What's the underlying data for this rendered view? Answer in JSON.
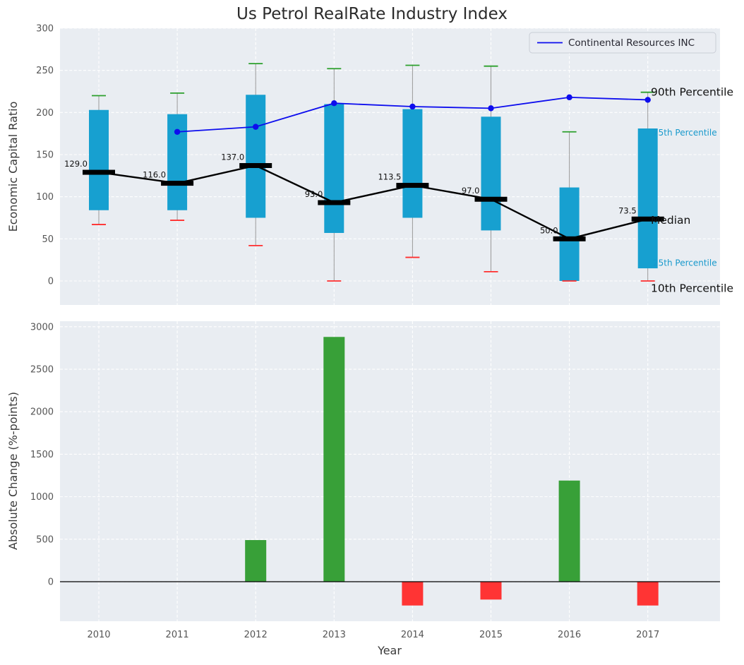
{
  "title": "Us Petrol RealRate Industry Index",
  "legend": {
    "series_label": "Continental Resources INC"
  },
  "colors": {
    "axes_bg": "#e9edf2",
    "grid": "#ffffff",
    "box_fill": "#17a0d0",
    "median": "#000000",
    "upper_cap": "#2ca02c",
    "lower_cap": "#ff2e2e",
    "company_line": "#0d0dee",
    "bar_positive": "#38a038",
    "bar_negative": "#ff3434",
    "tick": "#555555",
    "annotation_minor": "#1899cc",
    "whisker": "#999999"
  },
  "chart_data": [
    {
      "type": "boxplot",
      "title": "Us Petrol RealRate Industry Index",
      "ylabel": "Economic Capital Ratio",
      "ylim": [
        -28.5,
        300
      ],
      "yticks": [
        0,
        50,
        100,
        150,
        200,
        250,
        300
      ],
      "grid": true,
      "legend_position": "upper right",
      "categories": [
        "2010",
        "2011",
        "2012",
        "2013",
        "2014",
        "2015",
        "2016",
        "2017"
      ],
      "boxes": [
        {
          "year": "2010",
          "p10": 67,
          "p25": 84,
          "median": 129.0,
          "p75": 203,
          "p90": 220
        },
        {
          "year": "2011",
          "p10": 72,
          "p25": 84,
          "median": 116.0,
          "p75": 198,
          "p90": 223
        },
        {
          "year": "2012",
          "p10": 42,
          "p25": 75,
          "median": 137.0,
          "p75": 221,
          "p90": 258
        },
        {
          "year": "2013",
          "p10": 0,
          "p25": 57,
          "median": 93.0,
          "p75": 210,
          "p90": 252
        },
        {
          "year": "2014",
          "p10": 28,
          "p25": 75,
          "median": 113.5,
          "p75": 204,
          "p90": 256
        },
        {
          "year": "2015",
          "p10": 11,
          "p25": 60,
          "median": 97.0,
          "p75": 195,
          "p90": 255
        },
        {
          "year": "2016",
          "p10": 0,
          "p25": 0,
          "median": 50.0,
          "p75": 111,
          "p90": 177
        },
        {
          "year": "2017",
          "p10": 0,
          "p25": 15,
          "median": 73.5,
          "p75": 181,
          "p90": 224
        }
      ],
      "median_labels": [
        "129.0",
        "116.0",
        "137.0",
        "93.0",
        "113.5",
        "97.0",
        "50.0",
        "73.5"
      ],
      "series": [
        {
          "name": "Continental Resources INC",
          "values": [
            null,
            177,
            183,
            211,
            207,
            205,
            218,
            215
          ]
        }
      ],
      "annotations": [
        {
          "label": "90th Percentile",
          "value": 224,
          "kind": "major"
        },
        {
          "label": "75th Percentile",
          "value": 177,
          "kind": "minor"
        },
        {
          "label": "Median",
          "value": 72,
          "kind": "major"
        },
        {
          "label": "25th Percentile",
          "value": 22,
          "kind": "minor"
        },
        {
          "label": "10th Percentile",
          "value": -9,
          "kind": "major"
        }
      ]
    },
    {
      "type": "bar",
      "xlabel": "Year",
      "ylabel": "Absolute Change (%-points)",
      "ylim": [
        -465,
        3065
      ],
      "yticks": [
        0,
        500,
        1000,
        1500,
        2000,
        2500,
        3000
      ],
      "grid": true,
      "categories": [
        "2010",
        "2011",
        "2012",
        "2013",
        "2014",
        "2015",
        "2016",
        "2017"
      ],
      "values": [
        0,
        0,
        490,
        2880,
        -280,
        -210,
        1190,
        -280
      ]
    }
  ]
}
